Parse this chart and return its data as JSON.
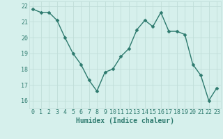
{
  "title": "",
  "xlabel": "Humidex (Indice chaleur)",
  "x": [
    0,
    1,
    2,
    3,
    4,
    5,
    6,
    7,
    8,
    9,
    10,
    11,
    12,
    13,
    14,
    15,
    16,
    17,
    18,
    19,
    20,
    21,
    22,
    23
  ],
  "y": [
    21.8,
    21.6,
    21.6,
    21.1,
    20.0,
    19.0,
    18.3,
    17.3,
    16.6,
    17.8,
    18.0,
    18.8,
    19.3,
    20.5,
    21.1,
    20.7,
    21.6,
    20.4,
    20.4,
    20.2,
    18.3,
    17.6,
    16.0,
    16.8
  ],
  "ylim": [
    15.5,
    22.3
  ],
  "xlim": [
    -0.5,
    23.5
  ],
  "yticks": [
    16,
    17,
    18,
    19,
    20,
    21,
    22
  ],
  "xticks": [
    0,
    1,
    2,
    3,
    4,
    5,
    6,
    7,
    8,
    9,
    10,
    11,
    12,
    13,
    14,
    15,
    16,
    17,
    18,
    19,
    20,
    21,
    22,
    23
  ],
  "line_color": "#2d7a6e",
  "marker_color": "#2d7a6e",
  "bg_color": "#d6f0ec",
  "grid_color": "#c0ddd8",
  "axis_label_color": "#2d7a6e",
  "tick_label_color": "#2d7a6e",
  "xlabel_fontsize": 7.0,
  "tick_fontsize": 6.0,
  "marker_size": 2.5,
  "line_width": 1.0
}
